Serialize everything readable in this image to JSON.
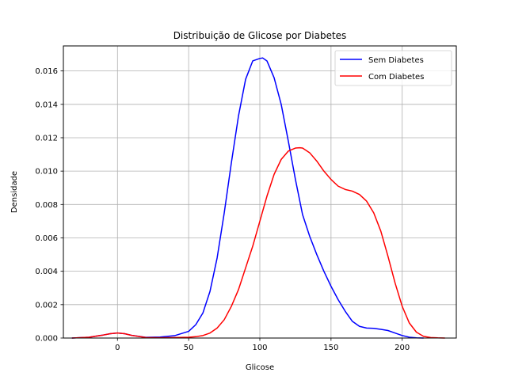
{
  "chart_data": {
    "type": "line",
    "title": "Distribuição de Glicose por Diabetes",
    "xlabel": "Glicose",
    "ylabel": "Densidade",
    "xlim": [
      -38,
      238
    ],
    "ylim": [
      0,
      0.0175
    ],
    "xticks": [
      0,
      50,
      100,
      150,
      200
    ],
    "xtick_labels": [
      "0",
      "50",
      "100",
      "150",
      "200"
    ],
    "yticks": [
      0,
      0.002,
      0.004,
      0.006,
      0.008,
      0.01,
      0.012,
      0.014,
      0.016
    ],
    "ytick_labels": [
      "0.000",
      "0.002",
      "0.004",
      "0.006",
      "0.008",
      "0.010",
      "0.012",
      "0.014",
      "0.016"
    ],
    "grid": true,
    "legend_position": "top-right",
    "series": [
      {
        "name": "Sem Diabetes",
        "color": "#0000ff",
        "x": [
          -32,
          -20,
          -10,
          -5,
          0,
          5,
          10,
          20,
          30,
          40,
          50,
          55,
          60,
          65,
          70,
          75,
          80,
          85,
          90,
          95,
          100,
          102,
          105,
          110,
          115,
          120,
          125,
          130,
          135,
          140,
          145,
          150,
          155,
          160,
          165,
          170,
          175,
          180,
          185,
          190,
          195,
          200,
          205,
          210,
          215
        ],
        "y": [
          0.0,
          5e-05,
          0.00018,
          0.00026,
          0.0003,
          0.00026,
          0.00016,
          4e-05,
          6e-05,
          0.00014,
          0.0004,
          0.0008,
          0.0015,
          0.0028,
          0.0048,
          0.0075,
          0.0105,
          0.0133,
          0.0155,
          0.0166,
          0.01675,
          0.01678,
          0.0166,
          0.0156,
          0.014,
          0.0118,
          0.0095,
          0.0074,
          0.0061,
          0.005,
          0.004,
          0.0031,
          0.0023,
          0.0016,
          0.001,
          0.0007,
          0.0006,
          0.00058,
          0.00052,
          0.00045,
          0.0003,
          0.00015,
          5e-05,
          1e-05,
          0.0
        ]
      },
      {
        "name": "Com Diabetes",
        "color": "#ff0000",
        "x": [
          -32,
          -20,
          -10,
          -5,
          0,
          5,
          10,
          20,
          30,
          40,
          50,
          55,
          60,
          65,
          70,
          75,
          80,
          85,
          90,
          95,
          100,
          105,
          110,
          115,
          120,
          125,
          128,
          130,
          135,
          140,
          145,
          150,
          155,
          160,
          165,
          170,
          175,
          180,
          185,
          190,
          195,
          200,
          205,
          210,
          215,
          220,
          225,
          230
        ],
        "y": [
          0.0,
          5e-05,
          0.00018,
          0.00026,
          0.0003,
          0.00026,
          0.00016,
          3e-05,
          2e-05,
          3e-05,
          5e-05,
          8e-05,
          0.00015,
          0.0003,
          0.0006,
          0.0011,
          0.0019,
          0.0029,
          0.0042,
          0.0055,
          0.007,
          0.0085,
          0.0098,
          0.0107,
          0.0112,
          0.01138,
          0.0114,
          0.01138,
          0.0111,
          0.0106,
          0.01,
          0.0095,
          0.0091,
          0.0089,
          0.0088,
          0.0086,
          0.0082,
          0.0075,
          0.0064,
          0.0049,
          0.0033,
          0.0019,
          0.0009,
          0.00035,
          0.0001,
          3e-05,
          1e-05,
          0.0
        ]
      }
    ]
  }
}
